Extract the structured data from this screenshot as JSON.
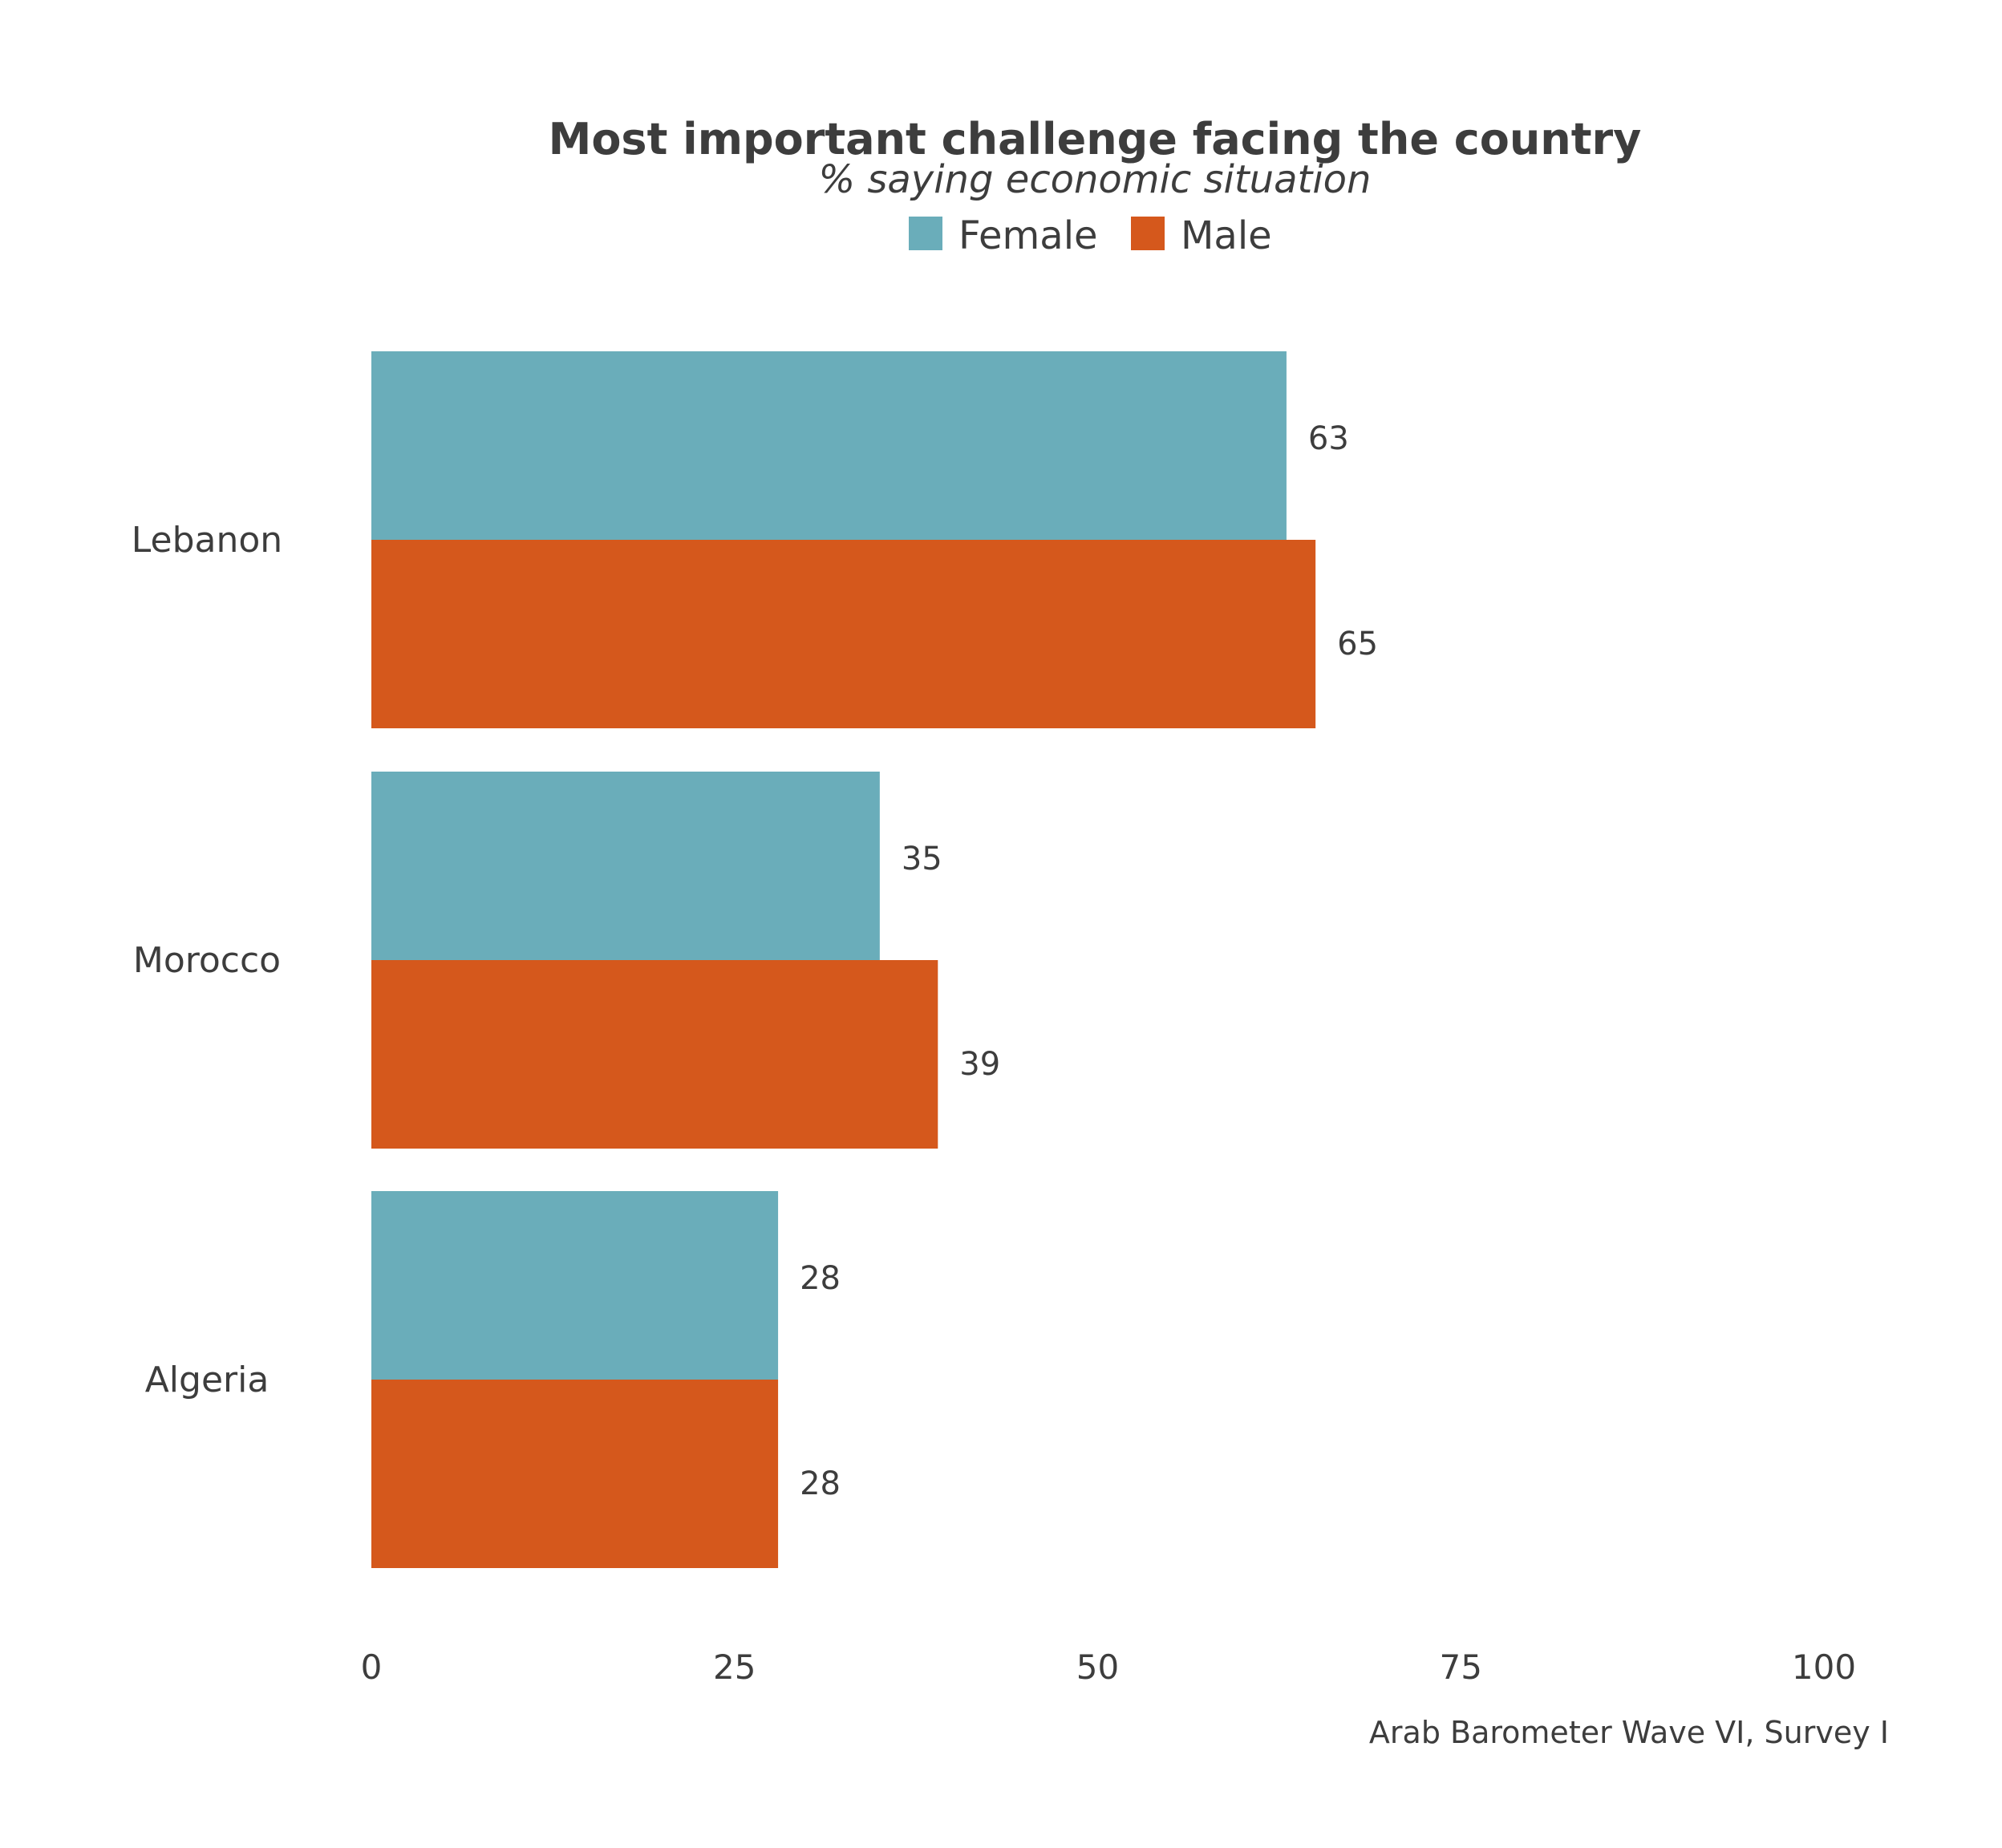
{
  "chart_data": {
    "type": "bar",
    "orientation": "horizontal",
    "title": "Most important challenge facing the country",
    "subtitle": "% saying economic situation",
    "caption": "Arab Barometer Wave VI, Survey I",
    "categories": [
      "Lebanon",
      "Morocco",
      "Algeria"
    ],
    "series": [
      {
        "name": "Female",
        "color": "#6aadba",
        "values": [
          63,
          35,
          28
        ]
      },
      {
        "name": "Male",
        "color": "#d5581c",
        "values": [
          65,
          39,
          28
        ]
      }
    ],
    "xlim": [
      0,
      100
    ],
    "xticks": [
      0,
      25,
      50,
      75,
      100
    ],
    "legend_position": "top-center",
    "grid": false
  }
}
